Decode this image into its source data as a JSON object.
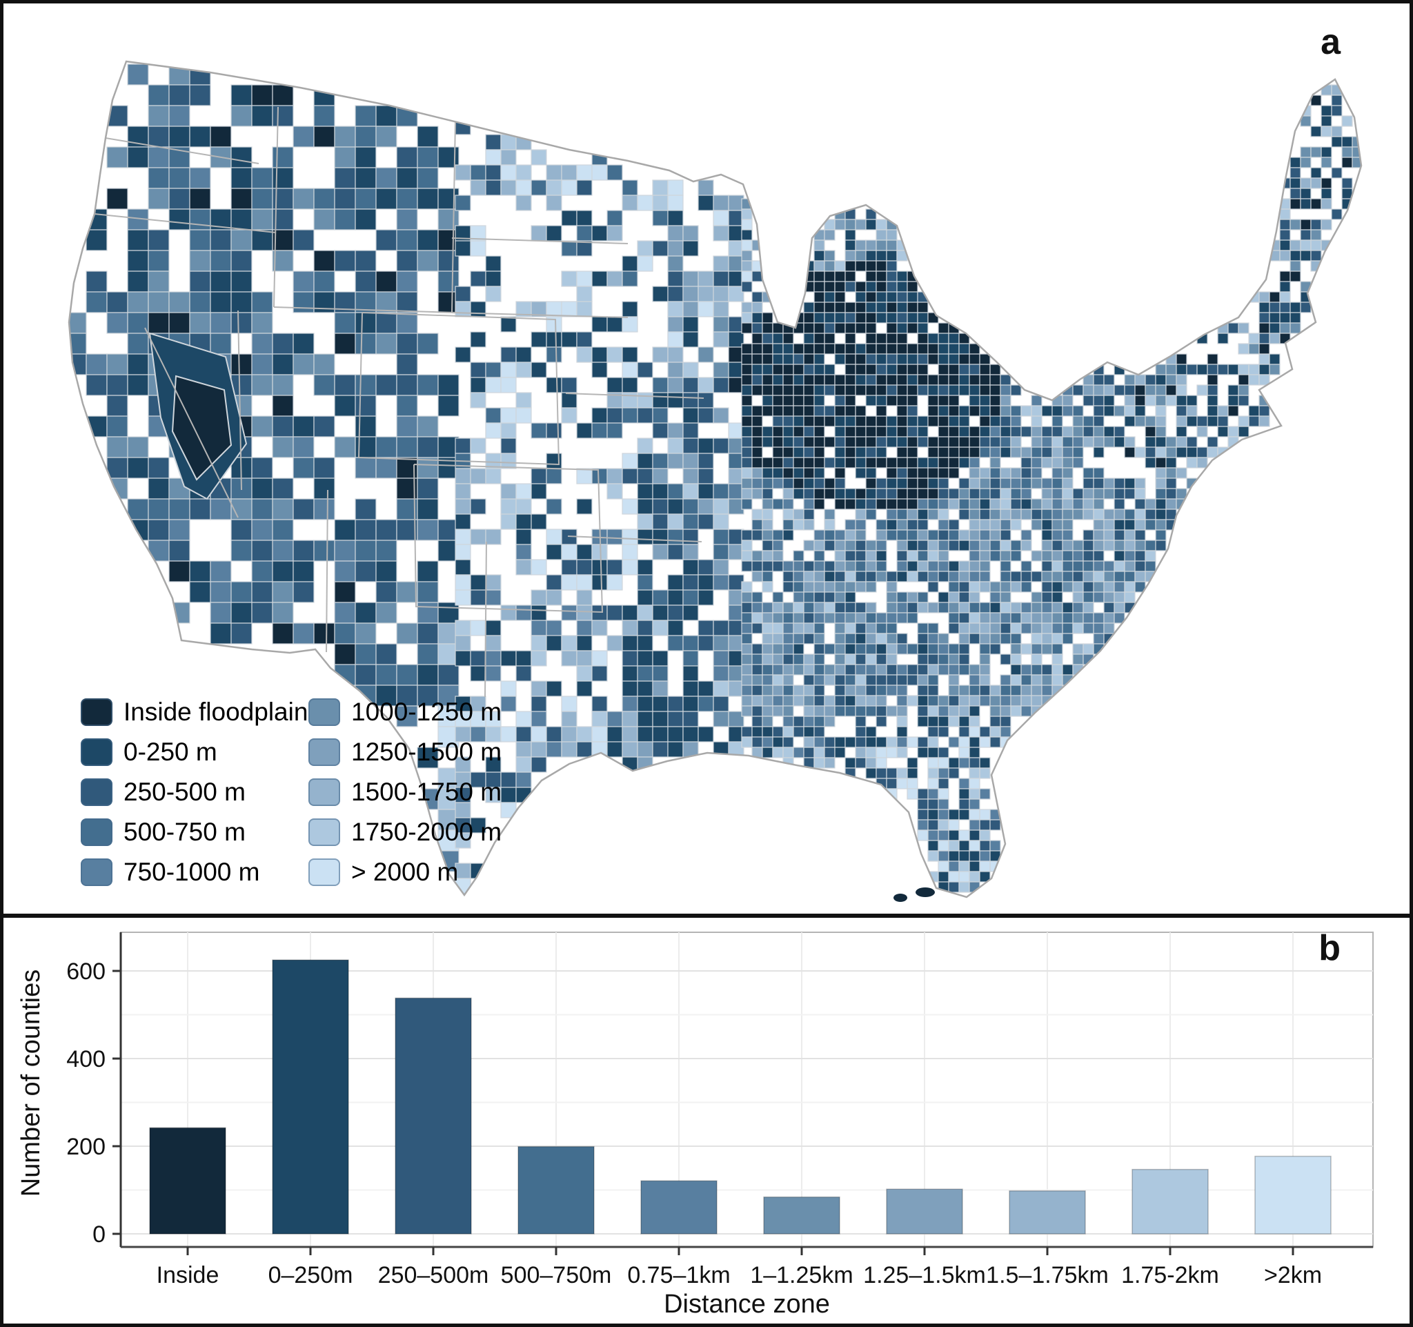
{
  "figure": {
    "panel_a_label": "a",
    "panel_b_label": "b"
  },
  "map": {
    "legend": {
      "items": [
        {
          "label": "Inside floodplain",
          "color": "#12293B"
        },
        {
          "label": "0-250 m",
          "color": "#1D4866"
        },
        {
          "label": "250-500 m",
          "color": "#30597B"
        },
        {
          "label": "500-750 m",
          "color": "#436E8F"
        },
        {
          "label": "750-1000 m",
          "color": "#587FA0"
        },
        {
          "label": "1000-1250 m",
          "color": "#6A8FAC"
        },
        {
          "label": "1250-1500 m",
          "color": "#7FA0BC"
        },
        {
          "label": "1500-1750 m",
          "color": "#95B3CD"
        },
        {
          "label": "1750-2000 m",
          "color": "#ADC8DF"
        },
        {
          "label": "> 2000 m",
          "color": "#CBE1F3"
        }
      ]
    },
    "state_border_color": "#b5b5b5",
    "county_border_color": "#cfd6dc",
    "outline_color": "#a8a8a8",
    "background": "#ffffff"
  },
  "chart_data": {
    "type": "bar",
    "categories": [
      "Inside",
      "0–250m",
      "250–500m",
      "500–750m",
      "0.75–1km",
      "1–1.25km",
      "1.25–1.5km",
      "1.5–1.75km",
      "1.75-2km",
      ">2km"
    ],
    "values": [
      242,
      625,
      538,
      199,
      121,
      84,
      102,
      98,
      147,
      177
    ],
    "bar_colors": [
      "#12293B",
      "#1D4866",
      "#30597B",
      "#436E8F",
      "#587FA0",
      "#6A8FAC",
      "#7FA0BC",
      "#95B3CD",
      "#ADC8DF",
      "#CBE1F3"
    ],
    "title": "",
    "xlabel": "Distance zone",
    "ylabel": "Number of counties",
    "ylim": [
      0,
      650
    ],
    "yticks": [
      0,
      200,
      400,
      600
    ],
    "yticks_minor": [
      100,
      300,
      500
    ],
    "grid": true,
    "legend_position": "none"
  }
}
